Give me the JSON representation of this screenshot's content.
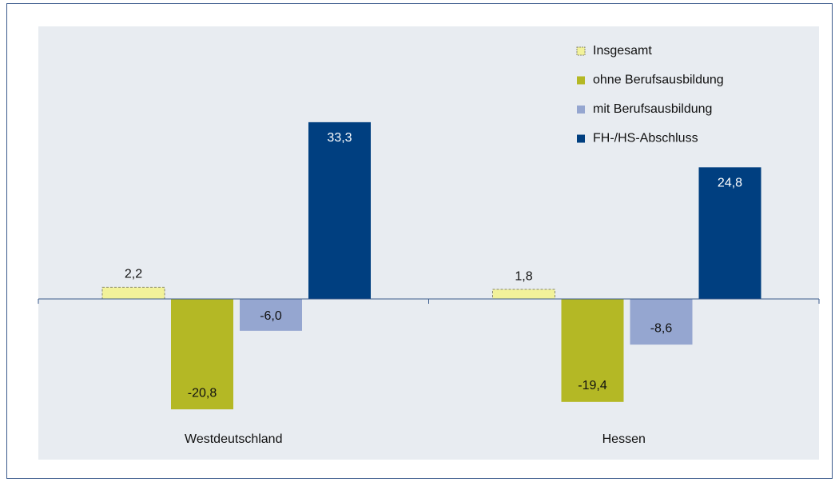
{
  "chart_data": {
    "type": "bar",
    "categories": [
      "Westdeutschland",
      "Hessen"
    ],
    "series": [
      {
        "name": "Insgesamt",
        "color": "#f2f29a",
        "values": [
          2.2,
          1.8
        ],
        "value_labels": [
          "2,2",
          "1,8"
        ]
      },
      {
        "name": "ohne Berufsausbildung",
        "color": "#b4b825",
        "values": [
          -20.8,
          -19.4
        ],
        "value_labels": [
          "-20,8",
          "-19,4"
        ]
      },
      {
        "name": "mit Berufsausbildung",
        "color": "#95a6d0",
        "values": [
          -6.0,
          -8.6
        ],
        "value_labels": [
          "-6,0",
          "-8,6"
        ]
      },
      {
        "name": "FH-/HS-Abschluss",
        "color": "#003f80",
        "values": [
          33.3,
          24.8
        ],
        "value_labels": [
          "33,3",
          "24,8"
        ]
      }
    ],
    "legend": "upper right"
  }
}
